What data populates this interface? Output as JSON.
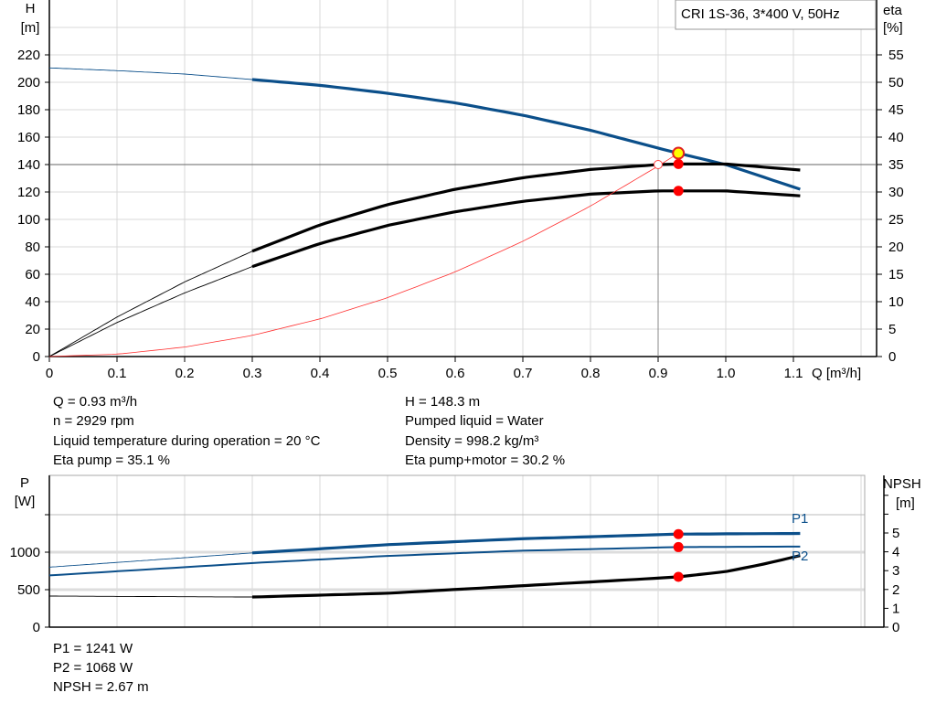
{
  "chart_data": [
    {
      "type": "line",
      "title": "CRI 1S-36, 3*400 V, 50Hz",
      "xlabel": "Q [m³/h]",
      "ylabel_left": [
        "H",
        "[m]"
      ],
      "ylabel_right": [
        "eta",
        "[%]"
      ],
      "xlim": [
        0,
        1.2
      ],
      "ylim_left": [
        0,
        260
      ],
      "ylim_right": [
        0,
        65
      ],
      "x_ticks": [
        "0",
        "0.1",
        "0.2",
        "0.3",
        "0.4",
        "0.5",
        "0.6",
        "0.7",
        "0.8",
        "0.9",
        "1.0",
        "1.1"
      ],
      "y_ticks_left": [
        "0",
        "20",
        "40",
        "60",
        "80",
        "100",
        "120",
        "140",
        "160",
        "180",
        "200",
        "220"
      ],
      "y_ticks_right": [
        "0",
        "5",
        "10",
        "15",
        "20",
        "25",
        "30",
        "35",
        "40",
        "45",
        "50",
        "55"
      ],
      "grid": true,
      "series": [
        {
          "axis": "left",
          "color": "#0b4f8a",
          "thick_from": 0.3,
          "x": [
            0,
            0.1,
            0.2,
            0.3,
            0.4,
            0.5,
            0.6,
            0.7,
            0.8,
            0.9,
            0.93,
            1.0,
            1.11
          ],
          "y": [
            210.5,
            208.5,
            206,
            202,
            197.8,
            192,
            185,
            176,
            165,
            152,
            148.3,
            140,
            122
          ]
        },
        {
          "axis": "right",
          "color": "#000000",
          "thick_from": 0.3,
          "x": [
            0,
            0.1,
            0.2,
            0.3,
            0.4,
            0.5,
            0.6,
            0.7,
            0.8,
            0.9,
            0.93,
            1.0,
            1.11
          ],
          "y": [
            0,
            7.2,
            13.6,
            19.2,
            24,
            27.7,
            30.5,
            32.6,
            34.1,
            35,
            35.1,
            35.1,
            34
          ]
        },
        {
          "axis": "right",
          "color": "#000000",
          "thick_from": 0.3,
          "x": [
            0,
            0.1,
            0.2,
            0.3,
            0.4,
            0.5,
            0.6,
            0.7,
            0.8,
            0.9,
            0.93,
            1.0,
            1.11
          ],
          "y": [
            0,
            6.2,
            11.6,
            16.4,
            20.6,
            23.9,
            26.4,
            28.3,
            29.6,
            30.2,
            30.2,
            30.2,
            29.3
          ]
        },
        {
          "axis": "left",
          "color": "#ff3030",
          "thick_from": null,
          "thin": true,
          "x": [
            0,
            0.1,
            0.2,
            0.3,
            0.4,
            0.5,
            0.6,
            0.7,
            0.8,
            0.9,
            0.93
          ],
          "y": [
            0,
            1.7,
            6.9,
            15.4,
            27.4,
            42.9,
            61.7,
            84,
            109.7,
            138.9,
            148.3
          ]
        }
      ],
      "duty_point": {
        "q": 0.93,
        "h": 148.3,
        "eta_pump": 35.1,
        "eta_total": 30.2
      },
      "reference_point": {
        "q": 0.9,
        "h": 140
      }
    },
    {
      "type": "line",
      "xlim": [
        0,
        1.2
      ],
      "ylabel_left": [
        "P",
        "[W]"
      ],
      "ylabel_right": [
        "NPSH",
        "[m]"
      ],
      "ylim_left": [
        0,
        2000
      ],
      "ylim_right": [
        0,
        7
      ],
      "y_ticks_left": [
        "0",
        "500",
        "1000"
      ],
      "y_ticks_right": [
        "0",
        "1",
        "2",
        "3",
        "4",
        "5"
      ],
      "grid": true,
      "series": [
        {
          "name": "P1",
          "axis": "left",
          "color": "#0b4f8a",
          "thick_from": 0.3,
          "x": [
            0,
            0.3,
            0.5,
            0.7,
            0.93,
            1.11
          ],
          "y": [
            800,
            990,
            1100,
            1180,
            1241,
            1250
          ]
        },
        {
          "name": "P2",
          "axis": "left",
          "color": "#0b4f8a",
          "thick_from": null,
          "x": [
            0,
            0.3,
            0.5,
            0.7,
            0.93,
            1.11
          ],
          "y": [
            690,
            855,
            950,
            1020,
            1068,
            1075
          ]
        },
        {
          "axis": "right",
          "color": "#000000",
          "thick_from": 0.3,
          "x": [
            0,
            0.3,
            0.5,
            0.7,
            0.85,
            0.93,
            1.0,
            1.05,
            1.11
          ],
          "y": [
            1.65,
            1.6,
            1.8,
            2.2,
            2.5,
            2.67,
            2.95,
            3.3,
            3.8
          ]
        }
      ],
      "points": [
        {
          "axis": "left",
          "q": 0.93,
          "v": 1241
        },
        {
          "axis": "left",
          "q": 0.93,
          "v": 1068
        },
        {
          "axis": "right",
          "q": 0.93,
          "v": 2.67
        }
      ]
    }
  ],
  "info": {
    "left": [
      "Q = 0.93 m³/h",
      "n = 2929 rpm",
      "Liquid temperature during operation = 20 °C",
      "Eta pump = 35.1 %"
    ],
    "right": [
      "H = 148.3 m",
      "Pumped liquid = Water",
      "Density = 998.2 kg/m³",
      "Eta pump+motor = 30.2 %"
    ],
    "bottom": [
      "P1 = 1241 W",
      "P2 = 1068 W",
      "NPSH = 2.67 m"
    ]
  },
  "colors": {
    "head": "#0b4f8a",
    "efficiency": "#000000",
    "system": "#ff3030",
    "duty_point": "#ffff00",
    "marker": "#ff0000"
  }
}
